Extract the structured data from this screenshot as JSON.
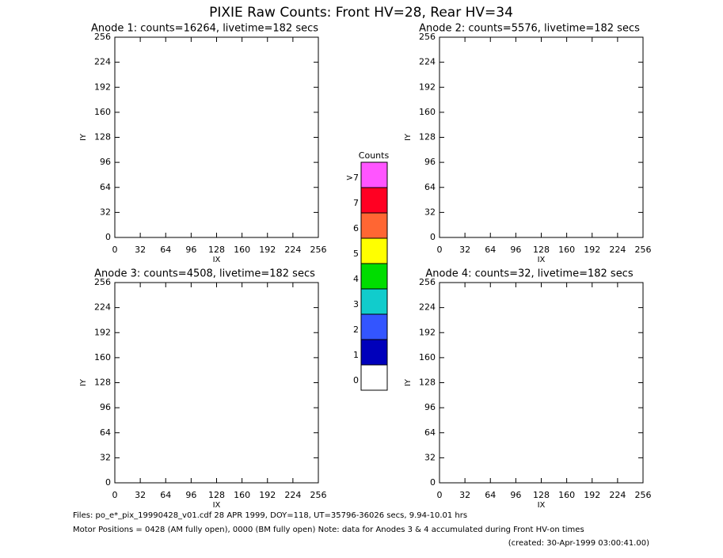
{
  "title": "PIXIE Raw Counts:  Front HV=28, Rear HV=34",
  "chart_data": [
    {
      "type": "heatmap",
      "title": "Anode 1: counts=16264, livetime=182 secs",
      "xlabel": "IX",
      "ylabel": "IY",
      "xlim": [
        0,
        256
      ],
      "ylim": [
        0,
        256
      ],
      "xticks": [
        0,
        32,
        64,
        96,
        128,
        160,
        192,
        224,
        256
      ],
      "yticks": [
        0,
        32,
        64,
        96,
        128,
        160,
        192,
        224,
        256
      ]
    },
    {
      "type": "heatmap",
      "title": "Anode 2: counts=5576, livetime=182 secs",
      "xlabel": "IX",
      "ylabel": "IY",
      "xlim": [
        0,
        256
      ],
      "ylim": [
        0,
        256
      ],
      "xticks": [
        0,
        32,
        64,
        96,
        128,
        160,
        192,
        224,
        256
      ],
      "yticks": [
        0,
        32,
        64,
        96,
        128,
        160,
        192,
        224,
        256
      ]
    },
    {
      "type": "heatmap",
      "title": "Anode 3: counts=4508, livetime=182 secs",
      "xlabel": "IX",
      "ylabel": "IY",
      "xlim": [
        0,
        256
      ],
      "ylim": [
        0,
        256
      ],
      "xticks": [
        0,
        32,
        64,
        96,
        128,
        160,
        192,
        224,
        256
      ],
      "yticks": [
        0,
        32,
        64,
        96,
        128,
        160,
        192,
        224,
        256
      ]
    },
    {
      "type": "heatmap",
      "title": "Anode 4: counts=32, livetime=182 secs",
      "xlabel": "IX",
      "ylabel": "IY",
      "xlim": [
        0,
        256
      ],
      "ylim": [
        0,
        256
      ],
      "xticks": [
        0,
        32,
        64,
        96,
        128,
        160,
        192,
        224,
        256
      ],
      "yticks": [
        0,
        32,
        64,
        96,
        128,
        160,
        192,
        224,
        256
      ]
    }
  ],
  "colorbar": {
    "title": "Counts",
    "levels": [
      {
        "label": ">7",
        "color": "#ff55ff"
      },
      {
        "label": "7",
        "color": "#ff0022"
      },
      {
        "label": "6",
        "color": "#ff6633"
      },
      {
        "label": "5",
        "color": "#ffff00"
      },
      {
        "label": "4",
        "color": "#00dd00"
      },
      {
        "label": "3",
        "color": "#11cccc"
      },
      {
        "label": "2",
        "color": "#3355ff"
      },
      {
        "label": "1",
        "color": "#0000bb"
      },
      {
        "label": "0",
        "color": "#ffffff"
      }
    ]
  },
  "footer": {
    "line1": "Files: po_e*_pix_19990428_v01.cdf    28 APR 1999, DOY=118, UT=35796-36026 secs,  9.94-10.01 hrs",
    "line2": "Motor Positions = 0428 (AM fully open), 0000 (BM fully open)    Note: data for Anodes 3 & 4 accumulated during Front HV-on times",
    "created": "(created: 30-Apr-1999 03:00:41.00)"
  }
}
